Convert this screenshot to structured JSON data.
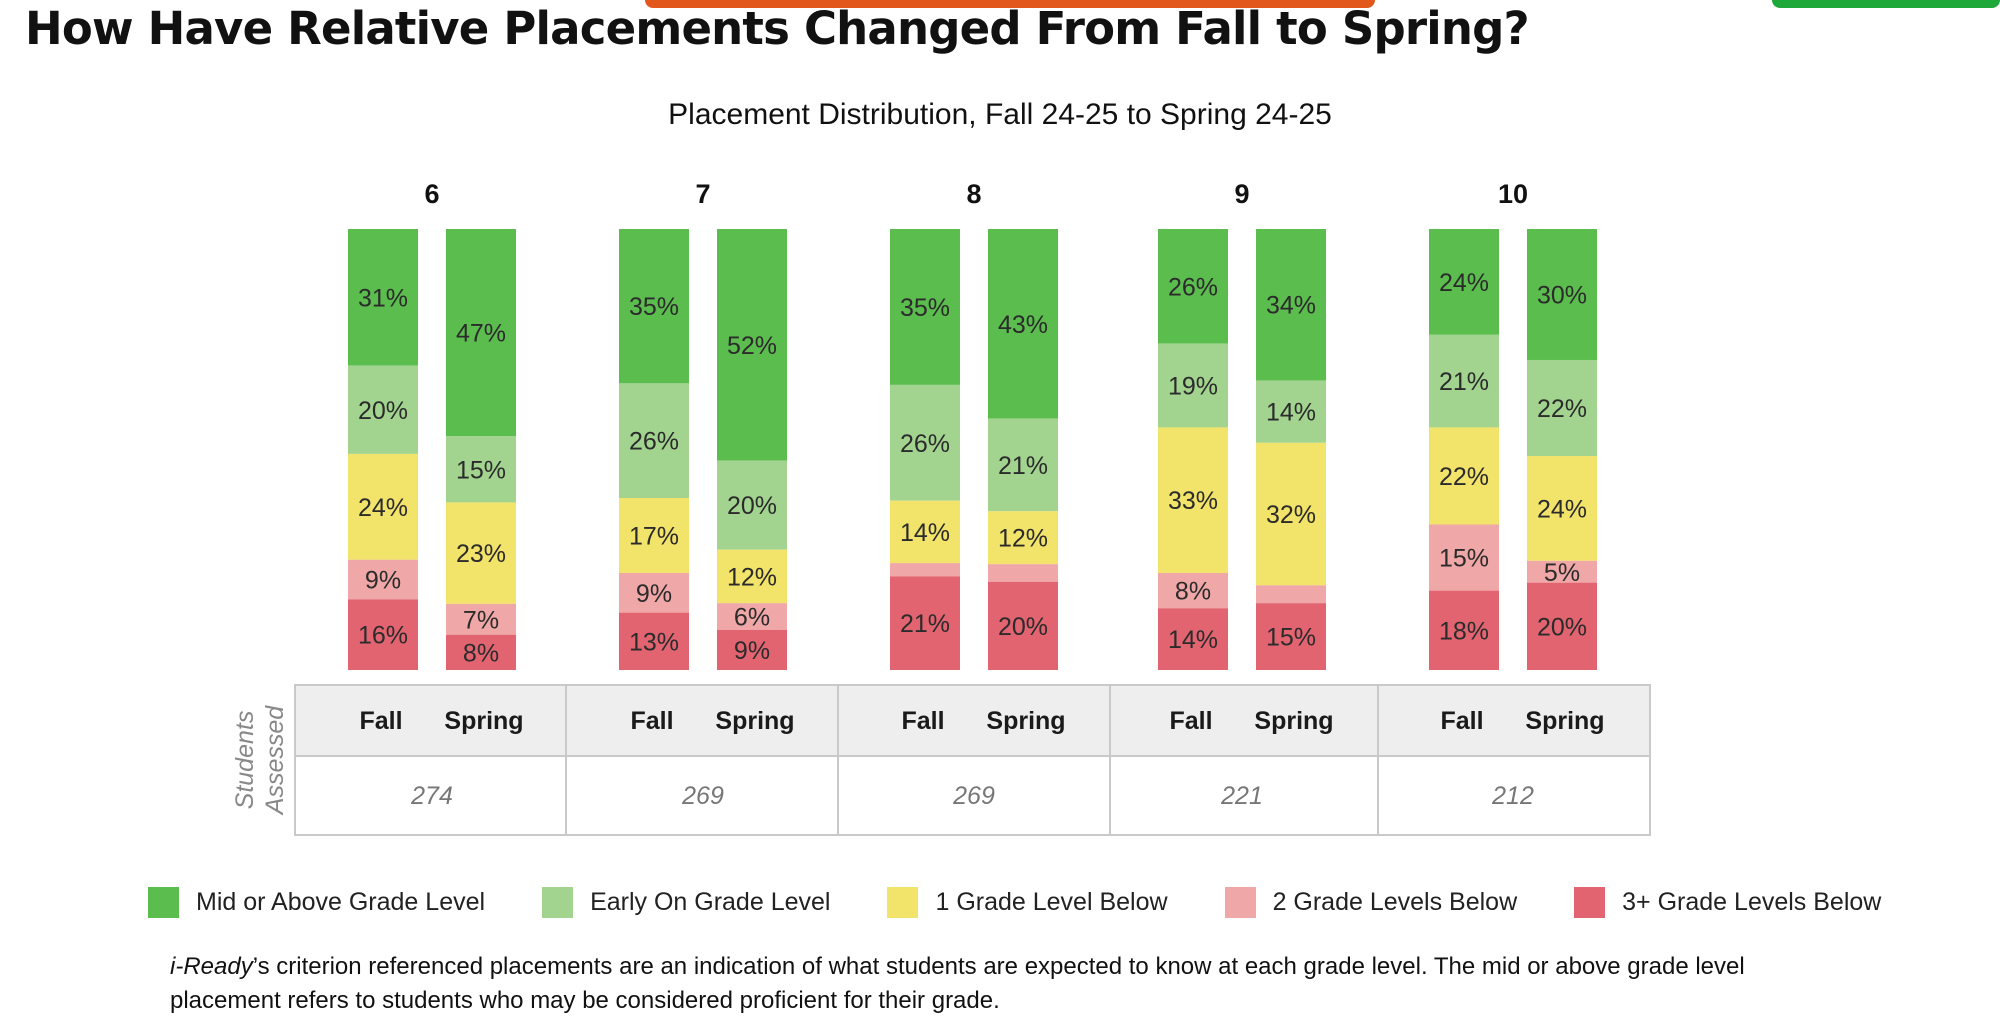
{
  "page_title": "How Have Relative Placements Changed From Fall to Spring?",
  "footnote": {
    "brand": "i-Ready",
    "text": "’s criterion referenced placements are an indication of what students are expected to know at each grade level. The mid or above grade level placement refers to students who may be considered proficient for their grade."
  },
  "colors": {
    "mid_or_above": "#5cbd4f",
    "early_on": "#a2d490",
    "one_below": "#f2e36a",
    "two_below": "#f0a7a7",
    "three_plus_below": "#e26470",
    "header_row": "#eeeeee",
    "table_border": "#c9c9c9",
    "top_accent_orange": "#e2571c",
    "top_accent_green": "#1fa83a"
  },
  "chart_data": {
    "type": "bar",
    "stacked": true,
    "normalized_percent": true,
    "title": "Placement Distribution, Fall 24-25 to Spring 24-25",
    "categories": [
      "6",
      "7",
      "8",
      "9",
      "10"
    ],
    "periods": [
      "Fall",
      "Spring"
    ],
    "table_row_label": "Students Assessed",
    "students_assessed": [
      "274",
      "269",
      "269",
      "221",
      "212"
    ],
    "series": [
      {
        "name": "Mid or Above Grade Level",
        "color": "#5cbd4f",
        "values": [
          [
            31,
            47
          ],
          [
            35,
            52
          ],
          [
            35,
            43
          ],
          [
            26,
            34
          ],
          [
            24,
            30
          ]
        ],
        "labels": [
          [
            "31%",
            "47%"
          ],
          [
            "35%",
            "52%"
          ],
          [
            "35%",
            "43%"
          ],
          [
            "26%",
            "34%"
          ],
          [
            "24%",
            "30%"
          ]
        ]
      },
      {
        "name": "Early On Grade Level",
        "color": "#a2d490",
        "values": [
          [
            20,
            15
          ],
          [
            26,
            20
          ],
          [
            26,
            21
          ],
          [
            19,
            14
          ],
          [
            21,
            22
          ]
        ],
        "labels": [
          [
            "20%",
            "15%"
          ],
          [
            "26%",
            "20%"
          ],
          [
            "26%",
            "21%"
          ],
          [
            "19%",
            "14%"
          ],
          [
            "21%",
            "22%"
          ]
        ]
      },
      {
        "name": "1 Grade Level Below",
        "color": "#f2e36a",
        "values": [
          [
            24,
            23
          ],
          [
            17,
            12
          ],
          [
            14,
            12
          ],
          [
            33,
            32
          ],
          [
            22,
            24
          ]
        ],
        "labels": [
          [
            "24%",
            "23%"
          ],
          [
            "17%",
            "12%"
          ],
          [
            "14%",
            "12%"
          ],
          [
            "33%",
            "32%"
          ],
          [
            "22%",
            "24%"
          ]
        ]
      },
      {
        "name": "2 Grade Levels Below",
        "color": "#f0a7a7",
        "values": [
          [
            9,
            7
          ],
          [
            9,
            6
          ],
          [
            3,
            4
          ],
          [
            8,
            4
          ],
          [
            15,
            5
          ]
        ],
        "labels": [
          [
            "9%",
            "7%"
          ],
          [
            "9%",
            "6%"
          ],
          [
            "",
            ""
          ],
          [
            "8%",
            ""
          ],
          [
            "15%",
            "5%"
          ]
        ]
      },
      {
        "name": "3+ Grade Levels Below",
        "color": "#e26470",
        "values": [
          [
            16,
            8
          ],
          [
            13,
            9
          ],
          [
            21,
            20
          ],
          [
            14,
            15
          ],
          [
            18,
            20
          ]
        ],
        "labels": [
          [
            "16%",
            "8%"
          ],
          [
            "13%",
            "9%"
          ],
          [
            "21%",
            "20%"
          ],
          [
            "14%",
            "15%"
          ],
          [
            "18%",
            "20%"
          ]
        ]
      }
    ],
    "legend_position": "bottom"
  }
}
